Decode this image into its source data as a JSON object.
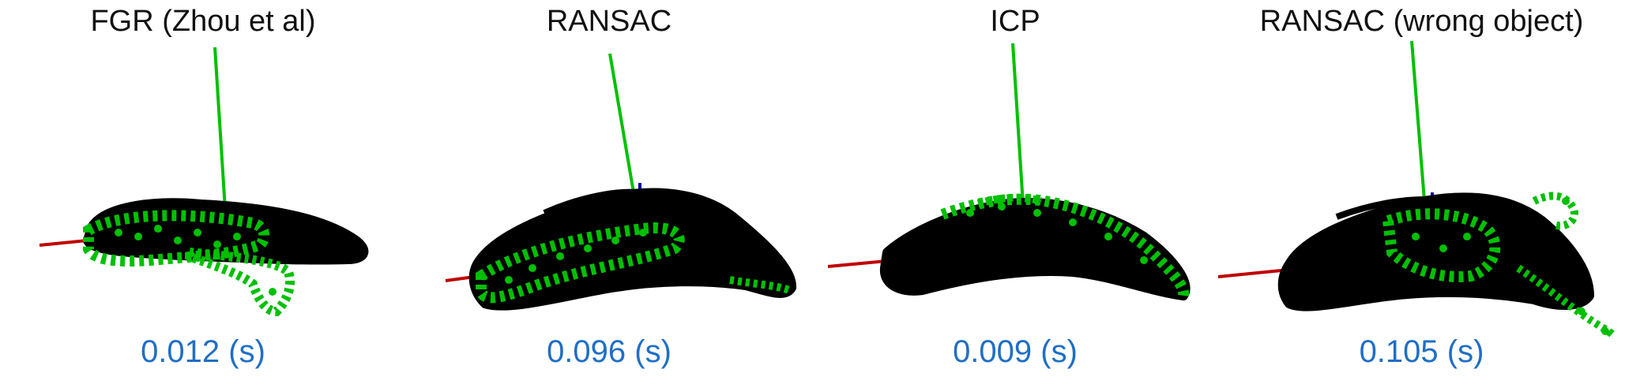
{
  "colors": {
    "model": "#000000",
    "registered": "#00c000",
    "x_axis": "#c00000",
    "y_axis": "#00c000",
    "z_axis": "#0000a0",
    "timing_text": "#1f6fc6",
    "title_text": "#111111"
  },
  "panels": [
    {
      "title": "FGR (Zhou et al)",
      "timing": "0.012 (s)"
    },
    {
      "title": "RANSAC",
      "timing": "0.096 (s)"
    },
    {
      "title": "ICP",
      "timing": "0.009 (s)"
    },
    {
      "title": "RANSAC (wrong object)",
      "timing": "0.105 (s)"
    }
  ]
}
